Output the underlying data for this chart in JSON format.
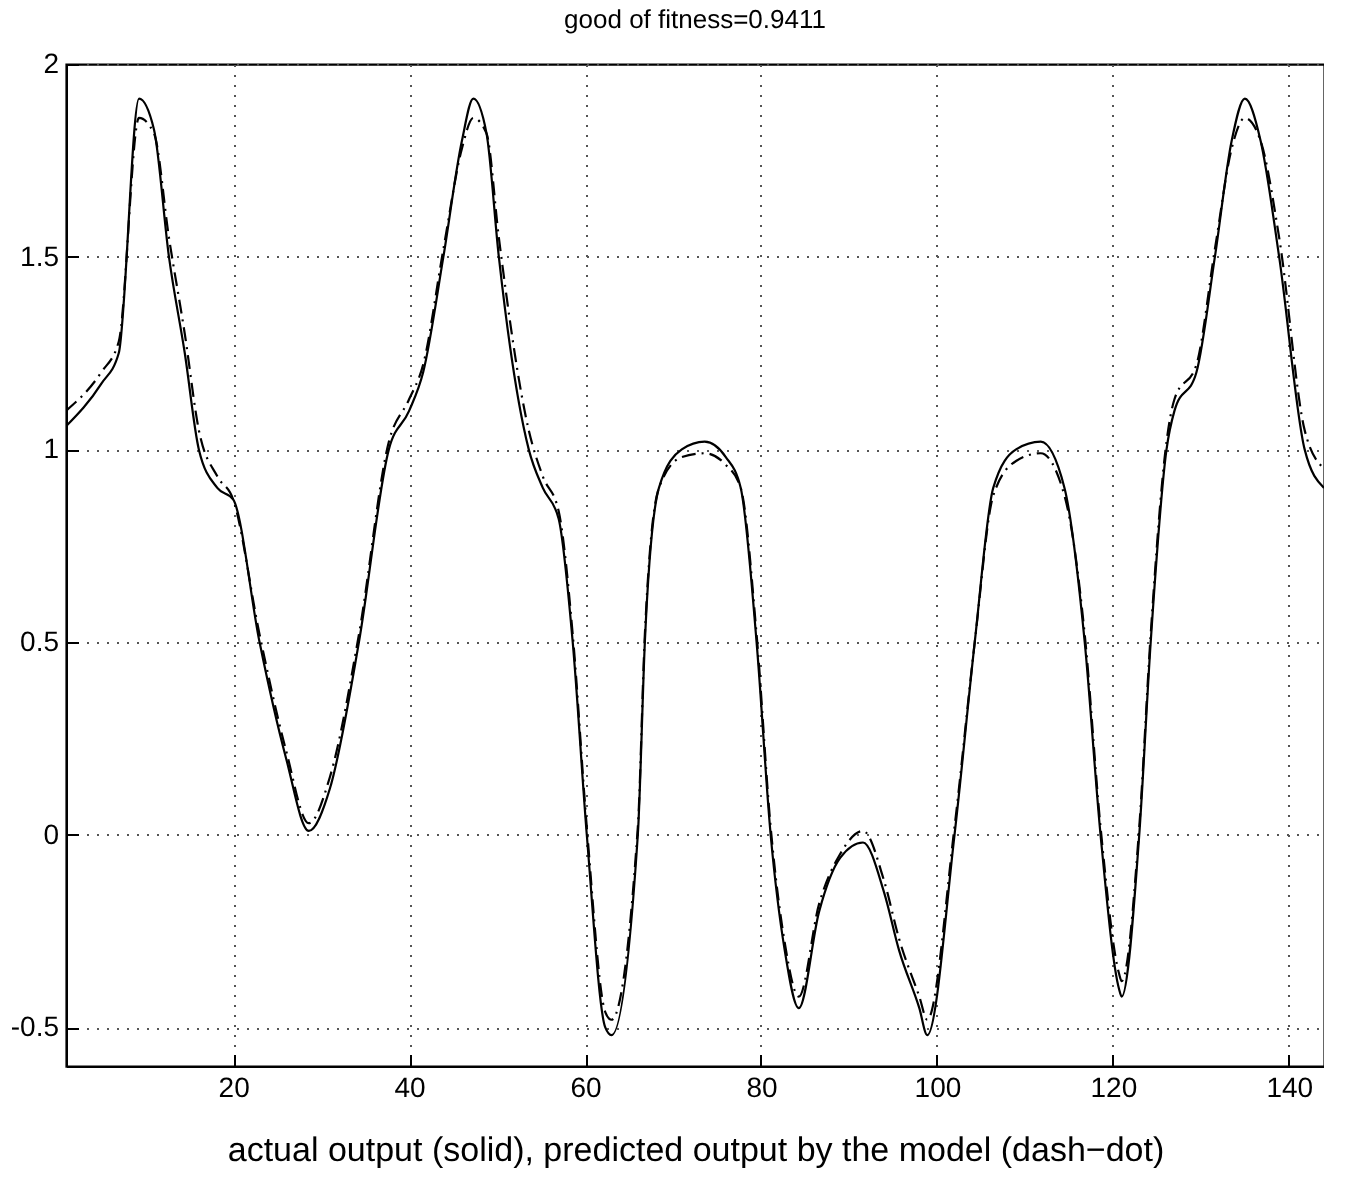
{
  "chart_data": {
    "type": "line",
    "title": "good of fitness=0.9411",
    "xlabel": "actual output (solid), predicted output by the model (dash−dot)",
    "xlim": [
      1,
      144
    ],
    "ylim": [
      -0.6,
      2
    ],
    "xticks": [
      20,
      40,
      60,
      80,
      100,
      120,
      140
    ],
    "yticks": [
      -0.5,
      0,
      0.5,
      1,
      1.5,
      2
    ],
    "grid": true,
    "series": [
      {
        "color": "#000000",
        "line_style": "solid",
        "x": [
          1,
          5,
          7,
          9.3,
          11,
          12.7,
          14.5,
          16.1,
          18.2,
          20,
          23,
          26,
          28.6,
          31,
          34.3,
          37.7,
          40,
          41.6,
          43.9,
          46,
          47.3,
          48.8,
          50.2,
          53.6,
          55.2,
          57,
          58.6,
          60.2,
          62.3,
          63,
          66,
          66.8,
          68.4,
          71,
          73.6,
          76,
          77.7,
          79.5,
          81.1,
          82.7,
          84.3,
          86.6,
          89,
          91.6,
          94,
          95.7,
          98,
          98.9,
          102,
          104.3,
          106.4,
          109,
          111.8,
          114.5,
          116.8,
          118.6,
          120.7,
          121,
          123,
          124.3,
          126.1,
          127,
          129.5,
          131.6,
          133.5,
          135,
          136.8,
          138.9,
          141.8,
          144
        ],
        "values": [
          1.06,
          1.17,
          1.25,
          1.91,
          1.83,
          1.5,
          1.25,
          1.0,
          0.9,
          0.87,
          0.5,
          0.2,
          0.01,
          0.12,
          0.5,
          1.0,
          1.1,
          1.2,
          1.5,
          1.8,
          1.91,
          1.82,
          1.5,
          1.0,
          0.9,
          0.82,
          0.5,
          0,
          -0.5,
          -0.52,
          0,
          0.5,
          0.9,
          1.0,
          1.02,
          0.98,
          0.9,
          0.5,
          0,
          -0.3,
          -0.45,
          -0.2,
          -0.06,
          -0.02,
          -0.15,
          -0.3,
          -0.45,
          -0.52,
          0,
          0.5,
          0.9,
          1.0,
          1.02,
          0.9,
          0.5,
          0,
          -0.4,
          -0.42,
          0,
          0.5,
          1.0,
          1.1,
          1.2,
          1.5,
          1.8,
          1.91,
          1.8,
          1.5,
          1.0,
          0.9
        ]
      },
      {
        "color": "#000000",
        "line_style": "dashdot",
        "x": [
          1,
          5,
          7,
          9.3,
          11,
          12.7,
          14.5,
          16.1,
          18.2,
          20,
          23,
          26,
          28.6,
          31,
          34.3,
          37.7,
          40,
          41.6,
          43.9,
          46,
          47.3,
          48.8,
          50.2,
          53.6,
          55.2,
          57,
          58.6,
          60.2,
          62.3,
          63,
          66,
          66.8,
          68.4,
          71,
          73.6,
          76,
          77.7,
          79.5,
          81.1,
          82.7,
          84.3,
          86.6,
          89,
          91.6,
          94,
          95.7,
          98,
          98.9,
          102,
          104.3,
          106.4,
          109,
          111.8,
          114.5,
          116.8,
          118.6,
          120.7,
          121,
          123,
          124.3,
          126.1,
          127,
          129.5,
          131.6,
          133.5,
          135,
          136.8,
          138.9,
          141.8,
          144
        ],
        "values": [
          1.1,
          1.2,
          1.28,
          1.86,
          1.82,
          1.55,
          1.3,
          1.05,
          0.93,
          0.87,
          0.52,
          0.22,
          0.03,
          0.15,
          0.52,
          1.02,
          1.13,
          1.22,
          1.52,
          1.78,
          1.86,
          1.82,
          1.55,
          1.05,
          0.93,
          0.84,
          0.52,
          0.02,
          -0.46,
          -0.48,
          0.02,
          0.52,
          0.9,
          0.98,
          0.99,
          0.96,
          0.9,
          0.52,
          0.02,
          -0.28,
          -0.42,
          -0.18,
          -0.05,
          0.01,
          -0.12,
          -0.27,
          -0.42,
          -0.48,
          0.02,
          0.5,
          0.88,
          0.97,
          0.99,
          0.88,
          0.52,
          0.02,
          -0.36,
          -0.38,
          0.02,
          0.52,
          1.02,
          1.13,
          1.22,
          1.52,
          1.78,
          1.86,
          1.8,
          1.55,
          1.05,
          0.95
        ]
      }
    ]
  }
}
